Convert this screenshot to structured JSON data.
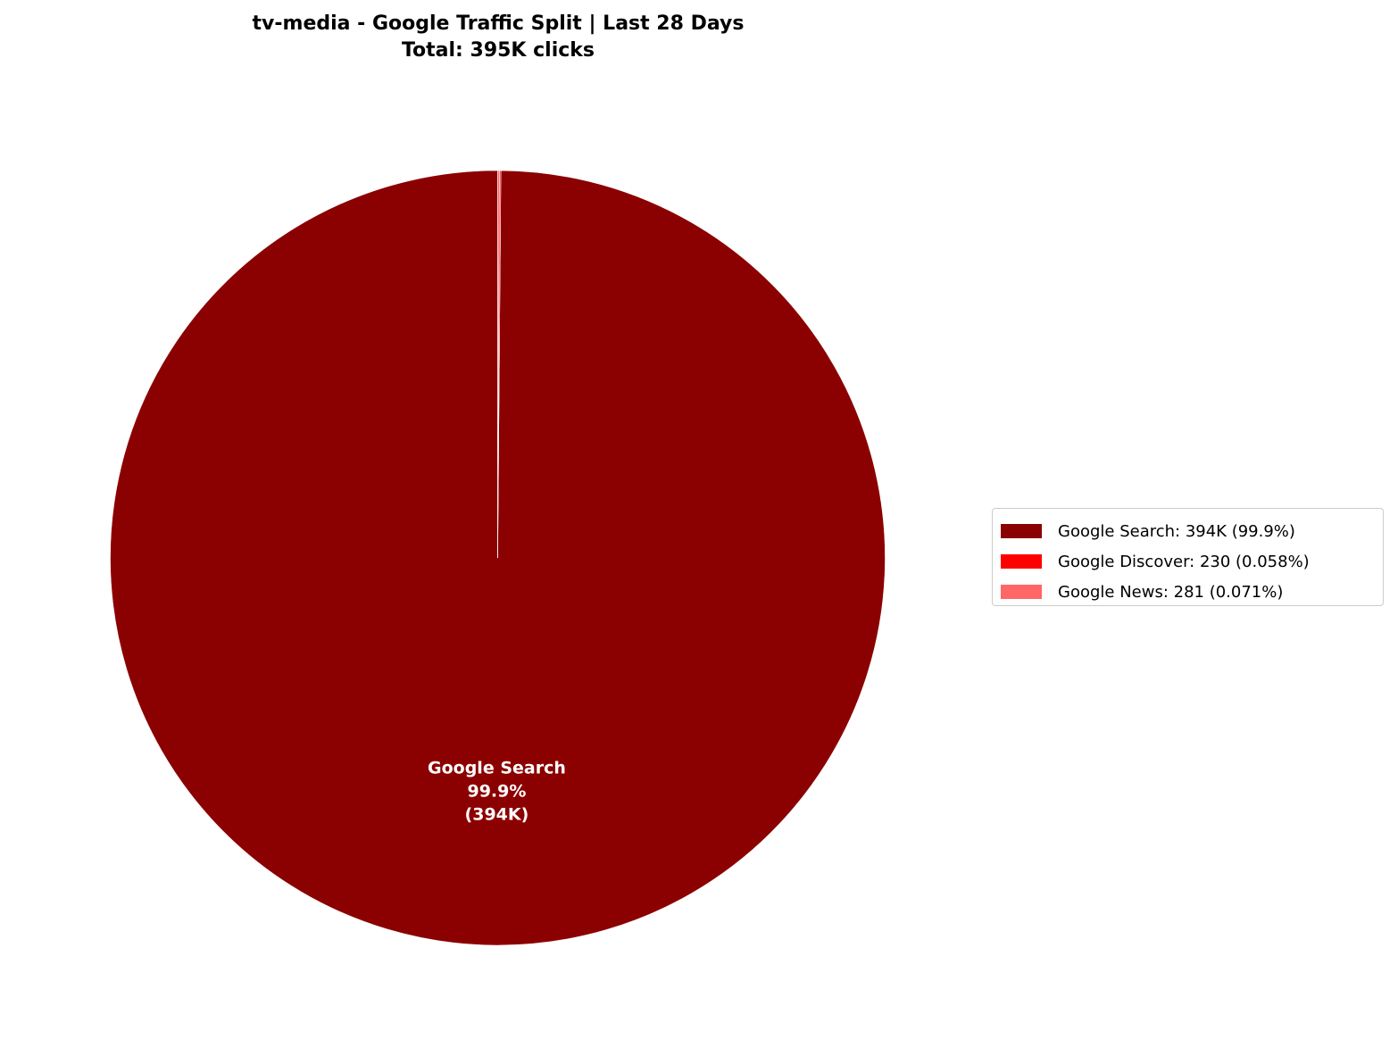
{
  "chart_data": {
    "type": "pie",
    "title": "tv-media - Google Traffic Split | Last 28 Days",
    "subtitle": "Total: 395K clicks",
    "start_angle": 90,
    "direction": "counterclockwise",
    "legend_position": "right",
    "slices": [
      {
        "name": "Google Search",
        "value": 394000,
        "percent": 99.9,
        "color": "#8B0000",
        "legend": "Google Search: 394K (99.9%)",
        "label": [
          "Google Search",
          "99.9%",
          "(394K)"
        ]
      },
      {
        "name": "Google Discover",
        "value": 230,
        "percent": 0.058,
        "color": "#FF0000",
        "legend": "Google Discover: 230 (0.058%)",
        "label": []
      },
      {
        "name": "Google News",
        "value": 281,
        "percent": 0.071,
        "color": "#FF6666",
        "legend": "Google News: 281 (0.071%)",
        "label": []
      }
    ]
  }
}
